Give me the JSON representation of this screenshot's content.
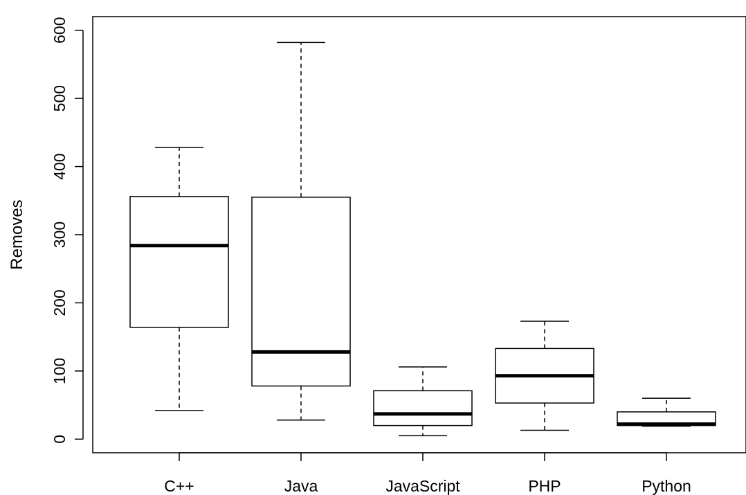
{
  "chart_data": {
    "type": "boxplot",
    "title": "",
    "xlabel": "",
    "ylabel": "Removes",
    "ylim": [
      -20,
      620
    ],
    "yticks": [
      0,
      100,
      200,
      300,
      400,
      500,
      600
    ],
    "grid": false,
    "categories": [
      "C++",
      "Java",
      "JavaScript",
      "PHP",
      "Python"
    ],
    "boxes": [
      {
        "name": "C++",
        "whisker_low": 42,
        "q1": 164,
        "median": 284,
        "q3": 356,
        "whisker_high": 428
      },
      {
        "name": "Java",
        "whisker_low": 28,
        "q1": 78,
        "median": 128,
        "q3": 355,
        "whisker_high": 582
      },
      {
        "name": "JavaScript",
        "whisker_low": 5,
        "q1": 20,
        "median": 37,
        "q3": 71,
        "whisker_high": 106
      },
      {
        "name": "PHP",
        "whisker_low": 13,
        "q1": 53,
        "median": 93,
        "q3": 133,
        "whisker_high": 173
      },
      {
        "name": "Python",
        "whisker_low": 19,
        "q1": 20,
        "median": 22,
        "q3": 40,
        "whisker_high": 60
      }
    ]
  }
}
